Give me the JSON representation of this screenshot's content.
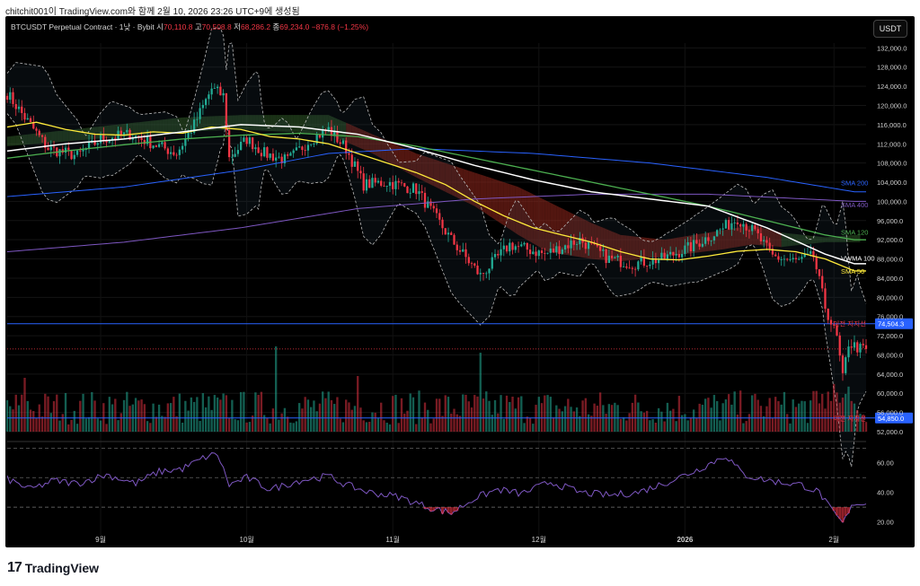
{
  "attribution": "chitchit001이 TradingView.com와 함께 2월 10, 2026 23:26 UTC+9에 생성됨",
  "header": {
    "symbol": "BTCUSDT Perpetual Contract · 1낮 · Bybit",
    "open_label": "시",
    "open": "70,110.8",
    "high_label": "고",
    "high": "70,508.8",
    "low_label": "저",
    "low": "68,286.2",
    "close_label": "종",
    "close": "69,234.0",
    "change": "−876.8 (−1.25%)"
  },
  "unit_button": "USDT",
  "brand": {
    "logo": "17",
    "name": "TradingView"
  },
  "colors": {
    "up": "#22ab94",
    "down": "#f23645",
    "sma200": "#2962ff",
    "sma400": "#7e57c2",
    "sma120": "#4caf50",
    "sma50": "#ffeb3b",
    "vwma": "#ffffff"
  },
  "chart_data": {
    "type": "candlestick",
    "x_ticks": [
      "9월",
      "10월",
      "11월",
      "12월",
      "2026",
      "2월"
    ],
    "price_ticks": [
      "132,000.0",
      "128,000.0",
      "124,000.0",
      "120,000.0",
      "116,000.0",
      "112,000.0",
      "108,000.0",
      "104,000.0",
      "100,000.0",
      "96,000.0",
      "92,000.0",
      "88,000.0",
      "84,000.0",
      "80,000.0",
      "76,000.0",
      "72,000.0",
      "68,000.0",
      "64,000.0",
      "60,000.0",
      "56,000.0",
      "52,000.0"
    ],
    "rsi_ticks": [
      "60.00",
      "40.00",
      "20.00"
    ],
    "price_range": [
      52000,
      133000
    ],
    "rsi_range": [
      10,
      72
    ],
    "current_price": 69234.0,
    "levels": [
      {
        "label": "이전 지지선",
        "value": 74504.3,
        "value_label": "74,504.3"
      },
      {
        "label": "이전 지지선",
        "value": 54850.0,
        "value_label": "54,850.0"
      }
    ],
    "legend": [
      {
        "name": "SMA 200",
        "color": "#2962ff"
      },
      {
        "name": "SMA 400",
        "color": "#7e57c2"
      },
      {
        "name": "SMA 120",
        "color": "#4caf50"
      },
      {
        "name": "VWMA 100",
        "color": "#ffffff"
      },
      {
        "name": "SMA 50",
        "color": "#ffeb3b"
      }
    ],
    "anchors": {
      "close": [
        [
          0,
          122500
        ],
        [
          6,
          117500
        ],
        [
          14,
          111000
        ],
        [
          24,
          109500
        ],
        [
          32,
          113000
        ],
        [
          42,
          114000
        ],
        [
          50,
          112000
        ],
        [
          58,
          110000
        ],
        [
          64,
          116000
        ],
        [
          70,
          123500
        ],
        [
          74,
          122000
        ],
        [
          76,
          109000
        ],
        [
          82,
          113000
        ],
        [
          88,
          110000
        ],
        [
          96,
          108500
        ],
        [
          104,
          113000
        ],
        [
          110,
          115000
        ],
        [
          116,
          111000
        ],
        [
          122,
          103500
        ],
        [
          130,
          104000
        ],
        [
          140,
          102500
        ],
        [
          152,
          92000
        ],
        [
          162,
          84500
        ],
        [
          172,
          91000
        ],
        [
          184,
          89000
        ],
        [
          196,
          92000
        ],
        [
          206,
          88000
        ],
        [
          214,
          87000
        ],
        [
          224,
          88000
        ],
        [
          234,
          90500
        ],
        [
          244,
          94000
        ],
        [
          250,
          96500
        ],
        [
          256,
          93500
        ],
        [
          262,
          88500
        ],
        [
          270,
          87500
        ],
        [
          276,
          88500
        ],
        [
          280,
          78000
        ],
        [
          284,
          71500
        ],
        [
          286,
          63000
        ],
        [
          288,
          70500
        ],
        [
          292,
          69234
        ]
      ],
      "sma50": [
        [
          0,
          115500
        ],
        [
          10,
          116500
        ],
        [
          20,
          115000
        ],
        [
          30,
          114000
        ],
        [
          40,
          113800
        ],
        [
          50,
          114500
        ],
        [
          60,
          114200
        ],
        [
          70,
          115500
        ],
        [
          80,
          115000
        ],
        [
          90,
          113500
        ],
        [
          100,
          113000
        ],
        [
          110,
          112000
        ],
        [
          120,
          110000
        ],
        [
          130,
          108000
        ],
        [
          140,
          106000
        ],
        [
          150,
          103500
        ],
        [
          160,
          100000
        ],
        [
          170,
          97000
        ],
        [
          180,
          94500
        ],
        [
          190,
          93000
        ],
        [
          200,
          91500
        ],
        [
          210,
          89500
        ],
        [
          220,
          88000
        ],
        [
          230,
          87800
        ],
        [
          240,
          88600
        ],
        [
          250,
          89600
        ],
        [
          260,
          90000
        ],
        [
          270,
          89500
        ],
        [
          280,
          88000
        ],
        [
          290,
          85500
        ]
      ],
      "sma120": [
        [
          0,
          109000
        ],
        [
          20,
          110500
        ],
        [
          40,
          111800
        ],
        [
          60,
          113000
        ],
        [
          80,
          113800
        ],
        [
          100,
          114200
        ],
        [
          120,
          113500
        ],
        [
          140,
          111500
        ],
        [
          160,
          109000
        ],
        [
          180,
          106500
        ],
        [
          200,
          104000
        ],
        [
          220,
          101500
        ],
        [
          240,
          99000
        ],
        [
          260,
          96000
        ],
        [
          280,
          93000
        ],
        [
          290,
          92000
        ]
      ],
      "vwma": [
        [
          0,
          110500
        ],
        [
          20,
          112000
        ],
        [
          40,
          113000
        ],
        [
          60,
          114500
        ],
        [
          80,
          116000
        ],
        [
          100,
          115500
        ],
        [
          120,
          114000
        ],
        [
          140,
          111000
        ],
        [
          160,
          107500
        ],
        [
          180,
          104500
        ],
        [
          200,
          102000
        ],
        [
          220,
          100500
        ],
        [
          240,
          99000
        ],
        [
          260,
          94500
        ],
        [
          280,
          89000
        ],
        [
          290,
          87000
        ]
      ],
      "sma200": [
        [
          0,
          101000
        ],
        [
          40,
          103000
        ],
        [
          80,
          106500
        ],
        [
          110,
          110000
        ],
        [
          140,
          111000
        ],
        [
          180,
          110000
        ],
        [
          220,
          108000
        ],
        [
          260,
          105000
        ],
        [
          290,
          102000
        ]
      ],
      "sma400": [
        [
          0,
          89500
        ],
        [
          40,
          91500
        ],
        [
          80,
          94500
        ],
        [
          120,
          98500
        ],
        [
          160,
          100500
        ],
        [
          200,
          101500
        ],
        [
          240,
          101500
        ],
        [
          290,
          100000
        ]
      ],
      "cloud_top": [
        [
          0,
          113500
        ],
        [
          30,
          115500
        ],
        [
          60,
          117500
        ],
        [
          80,
          118000
        ],
        [
          110,
          118000
        ],
        [
          125,
          114000
        ],
        [
          140,
          110000
        ],
        [
          160,
          106000
        ],
        [
          175,
          103000
        ],
        [
          185,
          100000
        ],
        [
          200,
          95500
        ],
        [
          210,
          93000
        ],
        [
          225,
          92000
        ],
        [
          245,
          94000
        ],
        [
          255,
          95000
        ],
        [
          265,
          93500
        ],
        [
          280,
          92500
        ],
        [
          290,
          93000
        ]
      ],
      "cloud_bot": [
        [
          0,
          111500
        ],
        [
          30,
          113000
        ],
        [
          60,
          114500
        ],
        [
          80,
          115000
        ],
        [
          110,
          114000
        ],
        [
          125,
          110000
        ],
        [
          140,
          105000
        ],
        [
          160,
          99000
        ],
        [
          175,
          93000
        ],
        [
          185,
          89500
        ],
        [
          200,
          88000
        ],
        [
          210,
          87500
        ],
        [
          225,
          88500
        ],
        [
          245,
          90000
        ],
        [
          255,
          91000
        ],
        [
          265,
          90500
        ],
        [
          280,
          91500
        ],
        [
          290,
          91500
        ]
      ],
      "rsi": [
        [
          0,
          49
        ],
        [
          8,
          42
        ],
        [
          16,
          48
        ],
        [
          24,
          46
        ],
        [
          34,
          52
        ],
        [
          44,
          46
        ],
        [
          52,
          54
        ],
        [
          60,
          56
        ],
        [
          68,
          64
        ],
        [
          72,
          66
        ],
        [
          76,
          45
        ],
        [
          82,
          50
        ],
        [
          90,
          42
        ],
        [
          100,
          48
        ],
        [
          110,
          51
        ],
        [
          116,
          45
        ],
        [
          124,
          40
        ],
        [
          134,
          37
        ],
        [
          144,
          30
        ],
        [
          152,
          26
        ],
        [
          160,
          36
        ],
        [
          168,
          42
        ],
        [
          176,
          39
        ],
        [
          186,
          47
        ],
        [
          196,
          40
        ],
        [
          206,
          38
        ],
        [
          216,
          40
        ],
        [
          226,
          47
        ],
        [
          236,
          55
        ],
        [
          246,
          65
        ],
        [
          252,
          52
        ],
        [
          258,
          49
        ],
        [
          264,
          47
        ],
        [
          272,
          45
        ],
        [
          278,
          40
        ],
        [
          282,
          28
        ],
        [
          286,
          19
        ],
        [
          290,
          33
        ],
        [
          294,
          32
        ]
      ]
    }
  }
}
